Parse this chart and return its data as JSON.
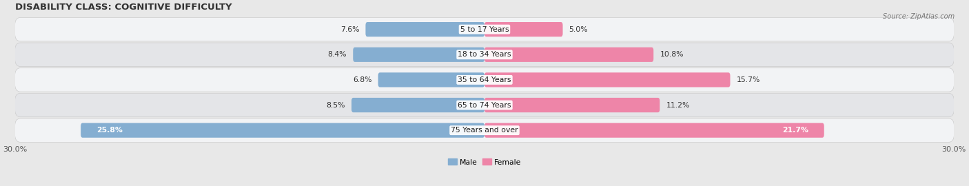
{
  "title": "DISABILITY CLASS: COGNITIVE DIFFICULTY",
  "source": "Source: ZipAtlas.com",
  "categories": [
    "5 to 17 Years",
    "18 to 34 Years",
    "35 to 64 Years",
    "65 to 74 Years",
    "75 Years and over"
  ],
  "male_values": [
    7.6,
    8.4,
    6.8,
    8.5,
    25.8
  ],
  "female_values": [
    5.0,
    10.8,
    15.7,
    11.2,
    21.7
  ],
  "male_color": "#85aed1",
  "female_color": "#ee85a8",
  "male_label": "Male",
  "female_label": "Female",
  "xlim": 30.0,
  "bar_height": 0.58,
  "background_color": "#e8e8e8",
  "row_colors_even": "#f2f3f5",
  "row_colors_odd": "#e4e5e8",
  "title_fontsize": 9.5,
  "label_fontsize": 7.8,
  "value_fontsize": 7.8,
  "axis_label_fontsize": 8.0,
  "inside_label_threshold": 20.0
}
